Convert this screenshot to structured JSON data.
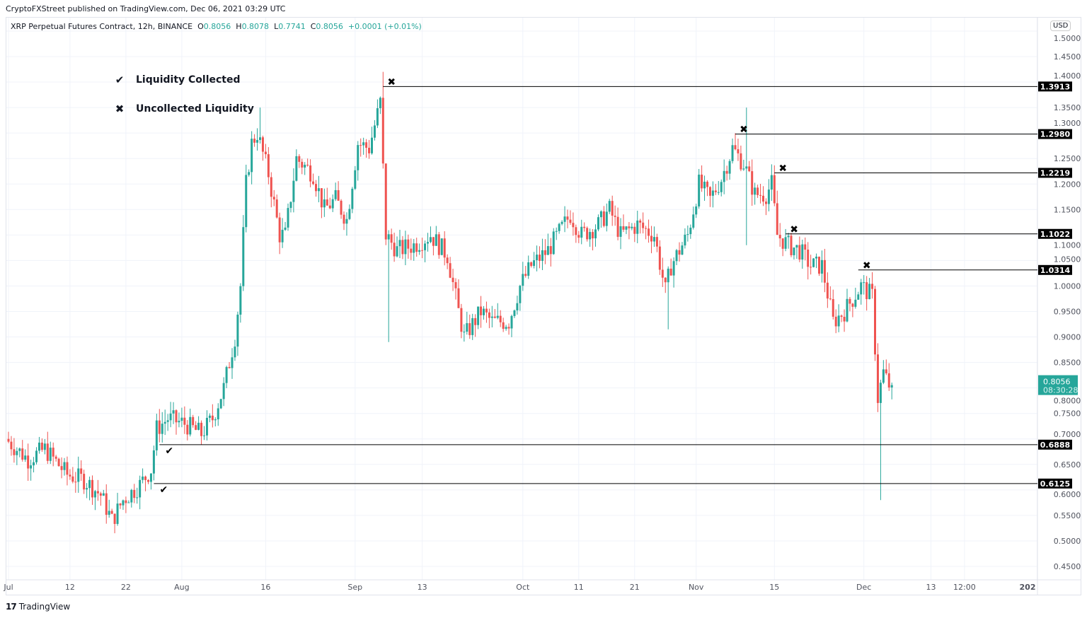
{
  "publisher": "CryptoFXStreet published on TradingView.com, Dec 06, 2021 03:29 UTC",
  "symbol_header": {
    "title": "XRP Perpetual Futures Contract, 12h, BINANCE",
    "o_label": "O",
    "o": "0.8056",
    "h_label": "H",
    "h": "0.8078",
    "l_label": "L",
    "l": "0.7741",
    "c_label": "C",
    "c": "0.8056",
    "change": "+0.0001 (+0.01%)"
  },
  "currency": "USD",
  "legend": [
    {
      "icon": "checkmark-icon",
      "label": "Liquidity Collected"
    },
    {
      "icon": "x-mark-icon",
      "label": "Uncollected Liquidity"
    }
  ],
  "branding": "TradingView",
  "colors": {
    "up": "#26a69a",
    "down": "#ef5350",
    "level_line": "#000000",
    "last_price_bg": "#26a69a"
  },
  "chart_data": {
    "type": "candlestick",
    "timeframe": "12h",
    "ylim": [
      0.45,
      1.5
    ],
    "grid": true,
    "y_ticks": [
      "1.5000",
      "1.4500",
      "1.4000",
      "1.3500",
      "1.3000",
      "1.2500",
      "1.2000",
      "1.1500",
      "1.1000",
      "1.0500",
      "1.0000",
      "0.9500",
      "0.9000",
      "0.8500",
      "0.8000",
      "0.7500",
      "0.7000",
      "0.6500",
      "0.6000",
      "0.5500",
      "0.5000",
      "0.4500"
    ],
    "x_ticks": [
      {
        "label": "Jul",
        "date": "2021-07-01"
      },
      {
        "label": "12",
        "date": "2021-07-12"
      },
      {
        "label": "22",
        "date": "2021-07-22"
      },
      {
        "label": "Aug",
        "date": "2021-08-01"
      },
      {
        "label": "16",
        "date": "2021-08-16"
      },
      {
        "label": "Sep",
        "date": "2021-09-01"
      },
      {
        "label": "13",
        "date": "2021-09-13"
      },
      {
        "label": "Oct",
        "date": "2021-10-01"
      },
      {
        "label": "11",
        "date": "2021-10-11"
      },
      {
        "label": "21",
        "date": "2021-10-21"
      },
      {
        "label": "Nov",
        "date": "2021-11-01"
      },
      {
        "label": "15",
        "date": "2021-11-15"
      },
      {
        "label": "Dec",
        "date": "2021-12-01"
      },
      {
        "label": "13",
        "date": "2021-12-13"
      },
      {
        "label": "12:00",
        "date": "2021-12-19"
      },
      {
        "label": "202",
        "date": "2022-01-01"
      }
    ],
    "approx_close_path": [
      [
        "2021-07-01",
        0.7
      ],
      [
        "2021-07-05",
        0.66
      ],
      [
        "2021-07-08",
        0.68
      ],
      [
        "2021-07-12",
        0.63
      ],
      [
        "2021-07-15",
        0.62
      ],
      [
        "2021-07-18",
        0.59
      ],
      [
        "2021-07-20",
        0.54
      ],
      [
        "2021-07-22",
        0.58
      ],
      [
        "2021-07-25",
        0.61
      ],
      [
        "2021-07-27",
        0.64
      ],
      [
        "2021-07-28",
        0.72
      ],
      [
        "2021-07-30",
        0.74
      ],
      [
        "2021-08-02",
        0.73
      ],
      [
        "2021-08-05",
        0.71
      ],
      [
        "2021-08-07",
        0.74
      ],
      [
        "2021-08-09",
        0.8
      ],
      [
        "2021-08-11",
        0.9
      ],
      [
        "2021-08-12",
        1.0
      ],
      [
        "2021-08-13",
        1.2
      ],
      [
        "2021-08-14",
        1.28
      ],
      [
        "2021-08-15",
        1.3
      ],
      [
        "2021-08-17",
        1.22
      ],
      [
        "2021-08-19",
        1.1
      ],
      [
        "2021-08-20",
        1.1
      ],
      [
        "2021-08-22",
        1.25
      ],
      [
        "2021-08-25",
        1.22
      ],
      [
        "2021-08-27",
        1.15
      ],
      [
        "2021-08-29",
        1.17
      ],
      [
        "2021-08-31",
        1.13
      ],
      [
        "2021-09-02",
        1.28
      ],
      [
        "2021-09-04",
        1.27
      ],
      [
        "2021-09-06",
        1.36
      ],
      [
        "2021-09-07",
        1.1
      ],
      [
        "2021-09-09",
        1.07
      ],
      [
        "2021-09-12",
        1.08
      ],
      [
        "2021-09-15",
        1.1
      ],
      [
        "2021-09-18",
        1.06
      ],
      [
        "2021-09-20",
        0.95
      ],
      [
        "2021-09-21",
        0.9
      ],
      [
        "2021-09-24",
        0.95
      ],
      [
        "2021-09-26",
        0.93
      ],
      [
        "2021-09-29",
        0.93
      ],
      [
        "2021-10-01",
        1.0
      ],
      [
        "2021-10-03",
        1.04
      ],
      [
        "2021-10-06",
        1.07
      ],
      [
        "2021-10-10",
        1.14
      ],
      [
        "2021-10-12",
        1.1
      ],
      [
        "2021-10-15",
        1.12
      ],
      [
        "2021-10-17",
        1.15
      ],
      [
        "2021-10-19",
        1.1
      ],
      [
        "2021-10-22",
        1.12
      ],
      [
        "2021-10-25",
        1.1
      ],
      [
        "2021-10-27",
        0.99
      ],
      [
        "2021-10-28",
        1.04
      ],
      [
        "2021-10-31",
        1.1
      ],
      [
        "2021-11-02",
        1.2
      ],
      [
        "2021-11-04",
        1.17
      ],
      [
        "2021-11-06",
        1.21
      ],
      [
        "2021-11-08",
        1.27
      ],
      [
        "2021-11-10",
        1.24
      ],
      [
        "2021-11-12",
        1.18
      ],
      [
        "2021-11-14",
        1.18
      ],
      [
        "2021-11-15",
        1.2
      ],
      [
        "2021-11-16",
        1.1
      ],
      [
        "2021-11-18",
        1.08
      ],
      [
        "2021-11-20",
        1.07
      ],
      [
        "2021-11-22",
        1.04
      ],
      [
        "2021-11-24",
        1.04
      ],
      [
        "2021-11-26",
        0.93
      ],
      [
        "2021-11-28",
        0.95
      ],
      [
        "2021-12-01",
        1.0
      ],
      [
        "2021-12-03",
        0.98
      ],
      [
        "2021-12-04",
        0.78
      ],
      [
        "2021-12-05",
        0.83
      ],
      [
        "2021-12-06",
        0.8056
      ]
    ],
    "wick_extremes": [
      {
        "date": "2021-07-20",
        "low": 0.515
      },
      {
        "date": "2021-09-06",
        "high": 1.42
      },
      {
        "date": "2021-09-07",
        "low": 0.89
      },
      {
        "date": "2021-11-10",
        "high": 1.35
      },
      {
        "date": "2021-11-10",
        "low": 1.08
      },
      {
        "date": "2021-10-27",
        "low": 0.915
      },
      {
        "date": "2021-12-04",
        "low": 0.58
      },
      {
        "date": "2021-08-15",
        "high": 1.35
      }
    ],
    "last_price": {
      "value": "0.8056",
      "countdown": "08:30:28"
    },
    "levels": [
      {
        "value": "1.3913",
        "type": "uncollected",
        "from": "2021-09-06"
      },
      {
        "value": "1.2980",
        "type": "uncollected",
        "from": "2021-11-08"
      },
      {
        "value": "1.2219",
        "type": "uncollected",
        "from": "2021-11-15"
      },
      {
        "value": "1.1022",
        "type": "uncollected",
        "from": "2021-11-17"
      },
      {
        "value": "1.0314",
        "type": "uncollected",
        "from": "2021-11-30"
      },
      {
        "value": "0.6888",
        "type": "collected",
        "from": "2021-07-28"
      },
      {
        "value": "0.6125",
        "type": "collected",
        "from": "2021-07-27"
      }
    ]
  }
}
